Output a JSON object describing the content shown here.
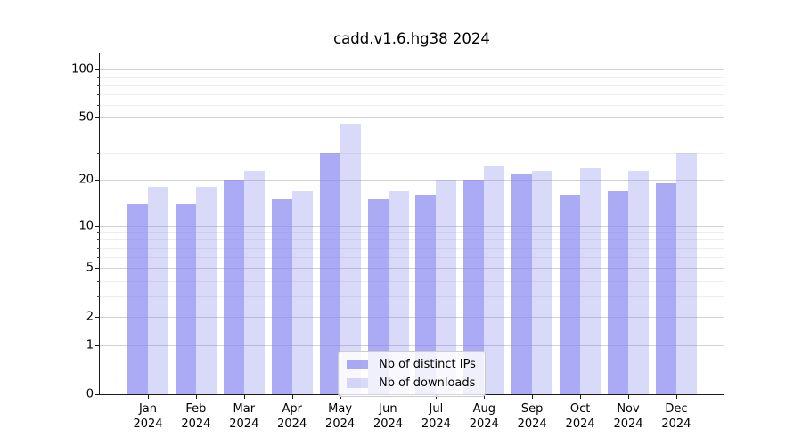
{
  "title": "cadd.v1.6.hg38 2024",
  "chart_data": {
    "type": "bar",
    "title": "cadd.v1.6.hg38 2024",
    "categories": [
      "Jan",
      "Feb",
      "Mar",
      "Apr",
      "May",
      "Jun",
      "Jul",
      "Aug",
      "Sep",
      "Oct",
      "Nov",
      "Dec"
    ],
    "category_year": "2024",
    "series": [
      {
        "name": "Nb of distinct IPs",
        "values": [
          14,
          14,
          20,
          15,
          30,
          15,
          16,
          20,
          22,
          16,
          17,
          19
        ],
        "color": "rgba(130,130,240,0.68)"
      },
      {
        "name": "Nb of downloads",
        "values": [
          18,
          18,
          23,
          17,
          46,
          17,
          20,
          25,
          23,
          24,
          23,
          30
        ],
        "color": "rgba(130,130,240,0.30)"
      }
    ],
    "xlabel": "",
    "ylabel": "",
    "yscale": "log1p",
    "ylim": [
      0,
      126
    ],
    "y_major_ticks": [
      0,
      1,
      2,
      5,
      10,
      20,
      50,
      100
    ],
    "y_major_tick_labels": [
      "0",
      "1",
      "2",
      "5",
      "10",
      "20",
      "50",
      "100"
    ],
    "y_minor_ticks": [
      3,
      4,
      6,
      7,
      8,
      9,
      30,
      40,
      60,
      70,
      80,
      90
    ],
    "grid": true,
    "grid_major_color": "#d2d2d2",
    "grid_minor_color": "#ededed",
    "legend_position": "lower center"
  }
}
